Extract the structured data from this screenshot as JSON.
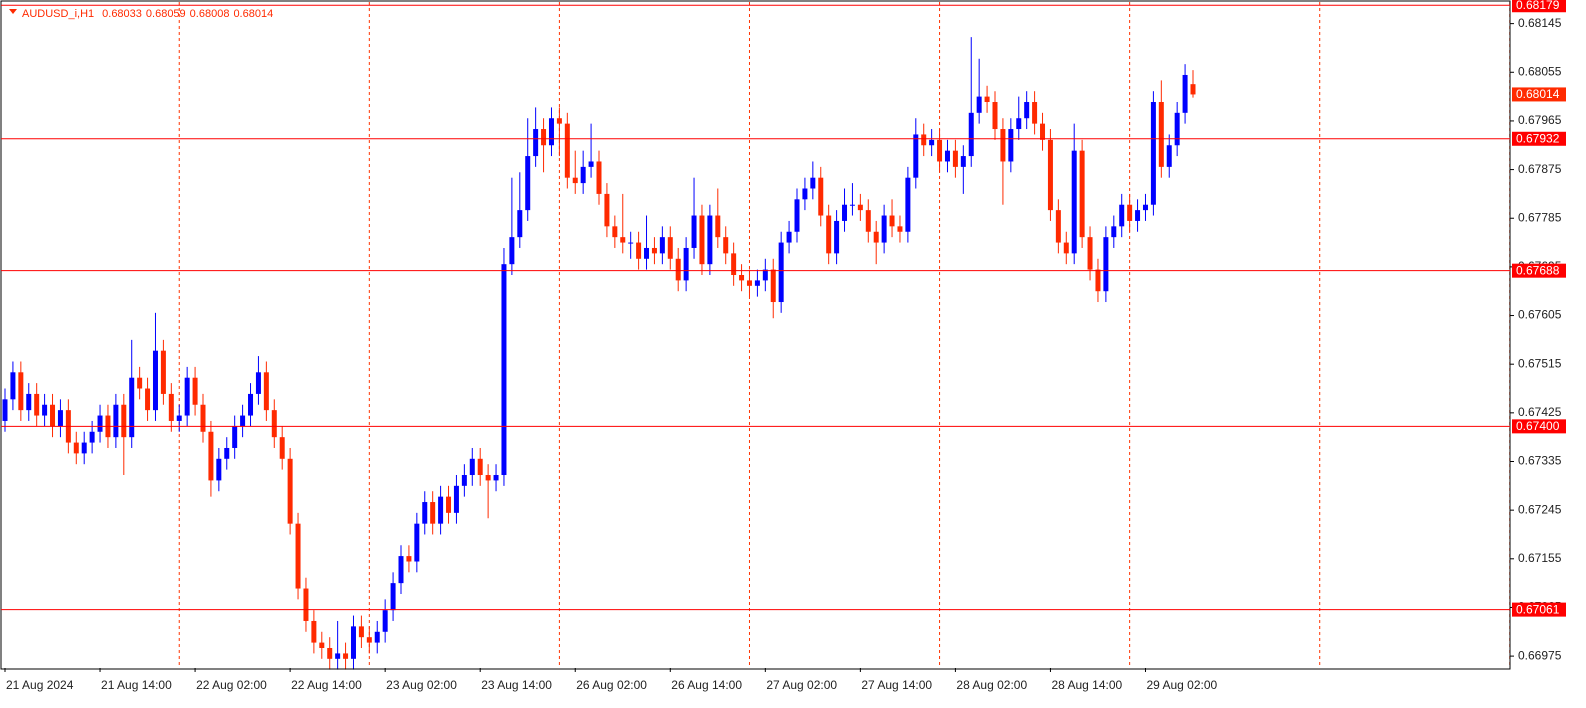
{
  "chart_data": {
    "type": "candlestick",
    "symbol": "AUDUSD_i,H1",
    "up_color": "#0000ff",
    "down_color": "#ff2a00",
    "level_color": "#ff0000",
    "grid": true,
    "ylim": [
      0.66953,
      0.68185
    ],
    "yticks": [
      0.68145,
      0.68055,
      0.67965,
      0.67875,
      0.67785,
      0.67695,
      0.67605,
      0.67515,
      0.67425,
      0.67335,
      0.67245,
      0.67155,
      0.67065,
      0.66975
    ],
    "levels": [
      0.68179,
      0.67932,
      0.67688,
      {
        "value": 0.674,
        "label": "0.67400"
      },
      0.67061
    ],
    "categories": [
      "21 Aug 2024",
      null,
      null,
      null,
      null,
      null,
      null,
      null,
      null,
      null,
      null,
      null,
      "21 Aug 14:00",
      null,
      null,
      null,
      null,
      null,
      null,
      null,
      null,
      null,
      null,
      null,
      "22 Aug 02:00",
      null,
      null,
      null,
      null,
      null,
      null,
      null,
      null,
      null,
      null,
      null,
      "22 Aug 14:00",
      null,
      null,
      null,
      null,
      null,
      null,
      null,
      null,
      null,
      null,
      null,
      "23 Aug 02:00",
      null,
      null,
      null,
      null,
      null,
      null,
      null,
      null,
      null,
      null,
      null,
      "23 Aug 14:00",
      null,
      null,
      null,
      null,
      null,
      null,
      null,
      null,
      null,
      null,
      null,
      "26 Aug 02:00",
      null,
      null,
      null,
      null,
      null,
      null,
      null,
      null,
      null,
      null,
      null,
      "26 Aug 14:00",
      null,
      null,
      null,
      null,
      null,
      null,
      null,
      null,
      null,
      null,
      null,
      "27 Aug 02:00",
      null,
      null,
      null,
      null,
      null,
      null,
      null,
      null,
      null,
      null,
      null,
      "27 Aug 14:00",
      null,
      null,
      null,
      null,
      null,
      null,
      null,
      null,
      null,
      null,
      null,
      "28 Aug 02:00",
      null,
      null,
      null,
      null,
      null,
      null,
      null,
      null,
      null,
      null,
      null,
      "28 Aug 14:00",
      null,
      null,
      null,
      null,
      null,
      null,
      null,
      null,
      null,
      null,
      null,
      "29 Aug 02:00",
      null,
      null,
      null,
      null,
      null,
      null
    ],
    "candles": [
      [
        0.6741,
        0.6747,
        0.6739,
        0.6745
      ],
      [
        0.6745,
        0.6752,
        0.6743,
        0.675
      ],
      [
        0.675,
        0.6752,
        0.6741,
        0.6743
      ],
      [
        0.6743,
        0.6748,
        0.6741,
        0.6746
      ],
      [
        0.6746,
        0.6748,
        0.674,
        0.6742
      ],
      [
        0.6742,
        0.6746,
        0.674,
        0.6744
      ],
      [
        0.6744,
        0.6746,
        0.6738,
        0.674
      ],
      [
        0.674,
        0.6745,
        0.6738,
        0.6743
      ],
      [
        0.6743,
        0.6745,
        0.6735,
        0.6737
      ],
      [
        0.6737,
        0.6739,
        0.6733,
        0.6735
      ],
      [
        0.6735,
        0.6739,
        0.6733,
        0.6737
      ],
      [
        0.6737,
        0.6741,
        0.6735,
        0.6739
      ],
      [
        0.6739,
        0.6744,
        0.6737,
        0.6742
      ],
      [
        0.6742,
        0.6744,
        0.6736,
        0.6738
      ],
      [
        0.6738,
        0.6746,
        0.6736,
        0.6744
      ],
      [
        0.6744,
        0.6746,
        0.6731,
        0.6738
      ],
      [
        0.6738,
        0.6756,
        0.6736,
        0.6749
      ],
      [
        0.6749,
        0.6751,
        0.6745,
        0.6747
      ],
      [
        0.6747,
        0.6749,
        0.6741,
        0.6743
      ],
      [
        0.6743,
        0.6761,
        0.6741,
        0.6754
      ],
      [
        0.6754,
        0.6756,
        0.6744,
        0.6746
      ],
      [
        0.6746,
        0.6748,
        0.6739,
        0.6741
      ],
      [
        0.6741,
        0.6744,
        0.6739,
        0.6742
      ],
      [
        0.6742,
        0.6751,
        0.674,
        0.6749
      ],
      [
        0.6749,
        0.6751,
        0.6742,
        0.6744
      ],
      [
        0.6744,
        0.6746,
        0.6737,
        0.6739
      ],
      [
        0.6739,
        0.6741,
        0.6727,
        0.673
      ],
      [
        0.673,
        0.6736,
        0.6728,
        0.6734
      ],
      [
        0.6734,
        0.6738,
        0.6732,
        0.6736
      ],
      [
        0.6736,
        0.6742,
        0.6734,
        0.674
      ],
      [
        0.674,
        0.6744,
        0.6738,
        0.6742
      ],
      [
        0.6742,
        0.6748,
        0.674,
        0.6746
      ],
      [
        0.6746,
        0.6753,
        0.6744,
        0.675
      ],
      [
        0.675,
        0.6752,
        0.6741,
        0.6743
      ],
      [
        0.6743,
        0.6745,
        0.6736,
        0.6738
      ],
      [
        0.6738,
        0.674,
        0.6732,
        0.6734
      ],
      [
        0.6734,
        0.6736,
        0.672,
        0.6722
      ],
      [
        0.6722,
        0.6724,
        0.6708,
        0.671
      ],
      [
        0.671,
        0.6712,
        0.6702,
        0.6704
      ],
      [
        0.6704,
        0.6706,
        0.6698,
        0.67
      ],
      [
        0.67,
        0.6702,
        0.6697,
        0.6699
      ],
      [
        0.6699,
        0.6701,
        0.6695,
        0.6697
      ],
      [
        0.6697,
        0.6704,
        0.6695,
        0.6698
      ],
      [
        0.6698,
        0.67,
        0.6695,
        0.6697
      ],
      [
        0.6697,
        0.6705,
        0.6695,
        0.6703
      ],
      [
        0.6703,
        0.6705,
        0.6699,
        0.6701
      ],
      [
        0.6701,
        0.6703,
        0.6698,
        0.67
      ],
      [
        0.67,
        0.6704,
        0.6698,
        0.6702
      ],
      [
        0.6702,
        0.6708,
        0.67,
        0.6706
      ],
      [
        0.6706,
        0.6713,
        0.6704,
        0.6711
      ],
      [
        0.6711,
        0.6718,
        0.6709,
        0.6716
      ],
      [
        0.6716,
        0.6718,
        0.6713,
        0.6715
      ],
      [
        0.6715,
        0.6724,
        0.6713,
        0.6722
      ],
      [
        0.6722,
        0.6728,
        0.672,
        0.6726
      ],
      [
        0.6726,
        0.6728,
        0.672,
        0.6722
      ],
      [
        0.6722,
        0.6729,
        0.672,
        0.6727
      ],
      [
        0.6727,
        0.6729,
        0.6722,
        0.6724
      ],
      [
        0.6724,
        0.6731,
        0.6722,
        0.6729
      ],
      [
        0.6729,
        0.6733,
        0.6727,
        0.6731
      ],
      [
        0.6731,
        0.6736,
        0.6729,
        0.6734
      ],
      [
        0.6734,
        0.6736,
        0.6729,
        0.6731
      ],
      [
        0.6731,
        0.6733,
        0.6723,
        0.673
      ],
      [
        0.673,
        0.6733,
        0.6728,
        0.6731
      ],
      [
        0.6731,
        0.6773,
        0.6729,
        0.677
      ],
      [
        0.677,
        0.6786,
        0.6768,
        0.6775
      ],
      [
        0.6775,
        0.6787,
        0.6773,
        0.678
      ],
      [
        0.678,
        0.6797,
        0.6778,
        0.679
      ],
      [
        0.679,
        0.6799,
        0.6788,
        0.6795
      ],
      [
        0.6795,
        0.6797,
        0.6787,
        0.6792
      ],
      [
        0.6792,
        0.6799,
        0.679,
        0.6797
      ],
      [
        0.6797,
        0.6799,
        0.679,
        0.6796
      ],
      [
        0.6796,
        0.6798,
        0.6784,
        0.6786
      ],
      [
        0.6786,
        0.6791,
        0.6783,
        0.6785
      ],
      [
        0.6785,
        0.6791,
        0.6783,
        0.6788
      ],
      [
        0.6788,
        0.6796,
        0.6786,
        0.6789
      ],
      [
        0.6789,
        0.6791,
        0.6781,
        0.6783
      ],
      [
        0.6783,
        0.6785,
        0.6775,
        0.6777
      ],
      [
        0.6777,
        0.6779,
        0.6773,
        0.6775
      ],
      [
        0.6775,
        0.6783,
        0.6772,
        0.6774
      ],
      [
        0.6774,
        0.6776,
        0.6771,
        0.6774
      ],
      [
        0.6774,
        0.6776,
        0.6769,
        0.6771
      ],
      [
        0.6771,
        0.6779,
        0.6769,
        0.6773
      ],
      [
        0.6773,
        0.6775,
        0.677,
        0.6772
      ],
      [
        0.6772,
        0.6777,
        0.677,
        0.6775
      ],
      [
        0.6775,
        0.6777,
        0.6769,
        0.6771
      ],
      [
        0.6771,
        0.6773,
        0.6765,
        0.6767
      ],
      [
        0.6767,
        0.6775,
        0.6765,
        0.6773
      ],
      [
        0.6773,
        0.6786,
        0.6771,
        0.6779
      ],
      [
        0.6779,
        0.6781,
        0.6768,
        0.677
      ],
      [
        0.677,
        0.6781,
        0.6768,
        0.6779
      ],
      [
        0.6779,
        0.6784,
        0.6773,
        0.6775
      ],
      [
        0.6775,
        0.6777,
        0.677,
        0.6772
      ],
      [
        0.6772,
        0.6774,
        0.6766,
        0.6768
      ],
      [
        0.6768,
        0.677,
        0.6765,
        0.6767
      ],
      [
        0.6767,
        0.6769,
        0.6764,
        0.6766
      ],
      [
        0.6766,
        0.6769,
        0.6764,
        0.6767
      ],
      [
        0.6767,
        0.6771,
        0.6765,
        0.6769
      ],
      [
        0.6769,
        0.6771,
        0.676,
        0.6763
      ],
      [
        0.6763,
        0.6776,
        0.6761,
        0.6774
      ],
      [
        0.6774,
        0.6778,
        0.6772,
        0.6776
      ],
      [
        0.6776,
        0.6784,
        0.6774,
        0.6782
      ],
      [
        0.6782,
        0.6786,
        0.678,
        0.6784
      ],
      [
        0.6784,
        0.6789,
        0.6782,
        0.6786
      ],
      [
        0.6786,
        0.6788,
        0.6777,
        0.6779
      ],
      [
        0.6779,
        0.6781,
        0.677,
        0.6772
      ],
      [
        0.6772,
        0.678,
        0.677,
        0.6778
      ],
      [
        0.6778,
        0.6784,
        0.6776,
        0.6781
      ],
      [
        0.6781,
        0.6785,
        0.6779,
        0.6781
      ],
      [
        0.6781,
        0.6783,
        0.6778,
        0.678
      ],
      [
        0.678,
        0.6782,
        0.6774,
        0.6776
      ],
      [
        0.6776,
        0.6778,
        0.677,
        0.6774
      ],
      [
        0.6774,
        0.6781,
        0.6772,
        0.6779
      ],
      [
        0.6779,
        0.6782,
        0.6775,
        0.6777
      ],
      [
        0.6777,
        0.6779,
        0.6774,
        0.6776
      ],
      [
        0.6776,
        0.6788,
        0.6774,
        0.6786
      ],
      [
        0.6786,
        0.6797,
        0.6784,
        0.6794
      ],
      [
        0.6794,
        0.6796,
        0.679,
        0.6792
      ],
      [
        0.6792,
        0.6795,
        0.679,
        0.6793
      ],
      [
        0.6793,
        0.6795,
        0.6787,
        0.6789
      ],
      [
        0.6789,
        0.6793,
        0.6787,
        0.6791
      ],
      [
        0.6791,
        0.6793,
        0.6786,
        0.6788
      ],
      [
        0.6788,
        0.6792,
        0.6783,
        0.679
      ],
      [
        0.679,
        0.6812,
        0.6788,
        0.6798
      ],
      [
        0.6798,
        0.6808,
        0.6796,
        0.6801
      ],
      [
        0.6801,
        0.6803,
        0.6798,
        0.68
      ],
      [
        0.68,
        0.6802,
        0.6793,
        0.6795
      ],
      [
        0.6795,
        0.6797,
        0.6781,
        0.6789
      ],
      [
        0.6789,
        0.6797,
        0.6787,
        0.6795
      ],
      [
        0.6795,
        0.6801,
        0.6793,
        0.6797
      ],
      [
        0.6797,
        0.6802,
        0.6795,
        0.68
      ],
      [
        0.68,
        0.6802,
        0.6794,
        0.6796
      ],
      [
        0.6796,
        0.6798,
        0.6791,
        0.6793
      ],
      [
        0.6793,
        0.6795,
        0.6778,
        0.678
      ],
      [
        0.678,
        0.6782,
        0.6772,
        0.6774
      ],
      [
        0.6774,
        0.6776,
        0.677,
        0.6772
      ],
      [
        0.6772,
        0.6796,
        0.677,
        0.6791
      ],
      [
        0.6791,
        0.6793,
        0.6773,
        0.6775
      ],
      [
        0.6775,
        0.6777,
        0.6767,
        0.6769
      ],
      [
        0.6769,
        0.6771,
        0.6763,
        0.6765
      ],
      [
        0.6765,
        0.6777,
        0.6763,
        0.6775
      ],
      [
        0.6775,
        0.6779,
        0.6773,
        0.6777
      ],
      [
        0.6777,
        0.6783,
        0.6775,
        0.6781
      ],
      [
        0.6781,
        0.6783,
        0.6776,
        0.6778
      ],
      [
        0.6778,
        0.6782,
        0.6776,
        0.678
      ],
      [
        0.678,
        0.6783,
        0.6778,
        0.6781
      ],
      [
        0.6781,
        0.6802,
        0.6779,
        0.68
      ],
      [
        0.68,
        0.6804,
        0.6786,
        0.6788
      ],
      [
        0.6788,
        0.6794,
        0.6786,
        0.6792
      ],
      [
        0.6792,
        0.68,
        0.679,
        0.6798
      ],
      [
        0.6798,
        0.6807,
        0.6796,
        0.6805
      ],
      [
        0.68033,
        0.68059,
        0.68008,
        0.68014
      ]
    ]
  }
}
